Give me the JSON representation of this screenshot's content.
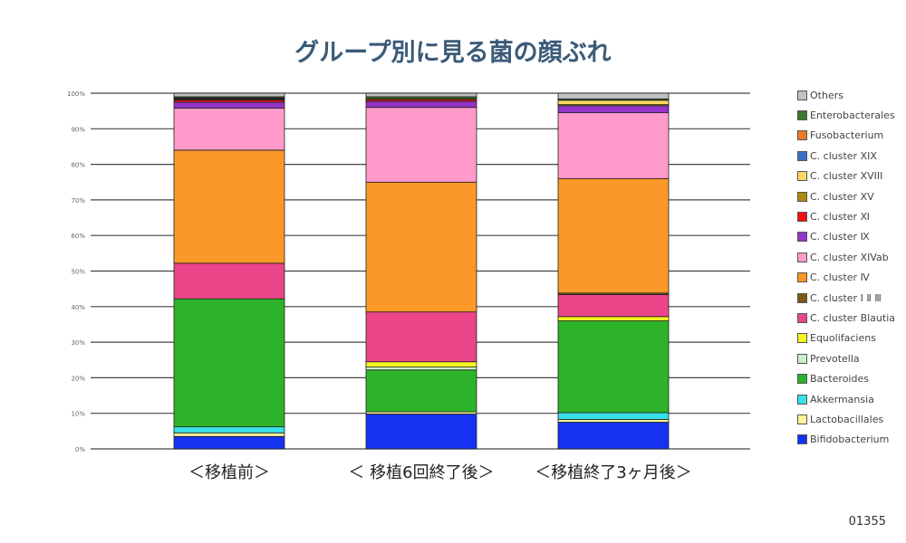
{
  "title": "グループ別に見る菌の顔ぶれ",
  "page_number": "01355",
  "chart_data": {
    "type": "bar",
    "stacked": true,
    "title": "グループ別に見る菌の顔ぶれ",
    "categories": [
      "＜移植前＞",
      "＜ 移植6回終了後＞",
      "＜移植終了3ヶ月後＞"
    ],
    "ylim": [
      0,
      100
    ],
    "yticks": [
      "0%",
      "10%",
      "20%",
      "30%",
      "40%",
      "50%",
      "60%",
      "70%",
      "80%",
      "90%",
      "100%"
    ],
    "legend_position": "right",
    "series": [
      {
        "name": "Bifidobacterium",
        "color": "#1432f0",
        "values": [
          3.5,
          9.8,
          7.5
        ]
      },
      {
        "name": "Lactobacillales",
        "color": "#fff59a",
        "values": [
          1.0,
          0.6,
          0.8
        ]
      },
      {
        "name": "Akkermansia",
        "color": "#38e0e8",
        "values": [
          1.7,
          0,
          1.9
        ]
      },
      {
        "name": "Bacteroides",
        "color": "#2db32a",
        "values": [
          36.0,
          11.8,
          25.8
        ]
      },
      {
        "name": "Prevotella",
        "color": "#c8f0c8",
        "values": [
          0,
          0.8,
          0
        ]
      },
      {
        "name": "Equolifaciens",
        "color": "#f5f520",
        "values": [
          0,
          1.5,
          1.2
        ]
      },
      {
        "name": "C. cluster Blautia",
        "color": "#eb458a",
        "values": [
          10.0,
          14.0,
          6.2
        ]
      },
      {
        "name": "C. cluster Ⅰ Ⅱ Ⅲ",
        "color": "#7a5a10",
        "values": [
          0,
          0,
          0.4
        ]
      },
      {
        "name": "C. cluster Ⅳ",
        "color": "#fa9828",
        "values": [
          31.8,
          36.5,
          32.2
        ]
      },
      {
        "name": "C. cluster XIVab",
        "color": "#ff9acb",
        "values": [
          11.8,
          21.0,
          18.5
        ]
      },
      {
        "name": "C. cluster Ⅸ",
        "color": "#9434c8",
        "values": [
          1.7,
          1.7,
          2.0
        ]
      },
      {
        "name": "C. cluster Ⅺ",
        "color": "#f01010",
        "values": [
          0.6,
          0.5,
          0
        ]
      },
      {
        "name": "C. cluster XV",
        "color": "#b08a10",
        "values": [
          0.2,
          0.3,
          0.3
        ]
      },
      {
        "name": "C. cluster XVIII",
        "color": "#ffd860",
        "values": [
          0.2,
          0,
          1.2
        ]
      },
      {
        "name": "C. cluster XIX",
        "color": "#3a70c8",
        "values": [
          0,
          0,
          0
        ]
      },
      {
        "name": "Fusobacterium",
        "color": "#f07828",
        "values": [
          0.2,
          0,
          0
        ]
      },
      {
        "name": "Enterobacterales",
        "color": "#3a7a2a",
        "values": [
          0.3,
          0.5,
          0.4
        ]
      },
      {
        "name": "Others",
        "color": "#c0c0c0",
        "values": [
          1.0,
          1.0,
          1.6
        ]
      }
    ]
  }
}
